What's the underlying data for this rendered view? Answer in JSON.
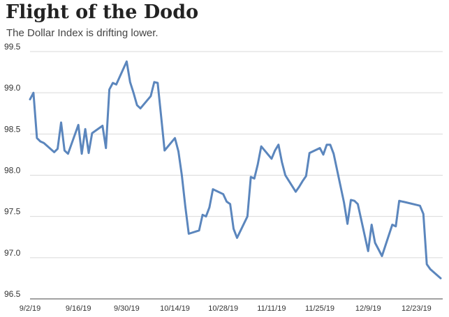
{
  "chart_data": {
    "type": "line",
    "title": "Flight of the Dodo",
    "subtitle": "The Dollar Index is drifting lower.",
    "xlabel": "",
    "ylabel": "",
    "ylim": [
      96.5,
      99.5
    ],
    "y_ticks": [
      "99.5",
      "99.0",
      "98.5",
      "98.0",
      "97.5",
      "97.0",
      "96.5"
    ],
    "y_tick_values": [
      99.5,
      99.0,
      98.5,
      98.0,
      97.5,
      97.0,
      96.5
    ],
    "x_ticks": [
      "9/2/19",
      "9/16/19",
      "9/30/19",
      "10/14/19",
      "10/28/19",
      "11/11/19",
      "11/25/19",
      "12/9/19",
      "12/23/19"
    ],
    "x_tick_dates": [
      "2019-09-02",
      "2019-09-16",
      "2019-09-30",
      "2019-10-14",
      "2019-10-28",
      "2019-11-11",
      "2019-11-25",
      "2019-12-09",
      "2019-12-23"
    ],
    "xlim": [
      "2019-09-02",
      "2019-12-30"
    ],
    "grid": "horizontal",
    "colors": {
      "line": "#5b86bd",
      "grid": "#d9d9d9",
      "baseline": "#444444"
    },
    "series": [
      {
        "x": [
          "2019-09-02",
          "2019-09-03",
          "2019-09-04",
          "2019-09-05",
          "2019-09-06",
          "2019-09-09",
          "2019-09-10",
          "2019-09-11",
          "2019-09-12",
          "2019-09-13",
          "2019-09-16",
          "2019-09-17",
          "2019-09-18",
          "2019-09-19",
          "2019-09-20",
          "2019-09-23",
          "2019-09-24",
          "2019-09-25",
          "2019-09-26",
          "2019-09-27",
          "2019-09-30",
          "2019-10-01",
          "2019-10-02",
          "2019-10-03",
          "2019-10-04",
          "2019-10-07",
          "2019-10-08",
          "2019-10-09",
          "2019-10-10",
          "2019-10-11",
          "2019-10-14",
          "2019-10-15",
          "2019-10-16",
          "2019-10-17",
          "2019-10-18",
          "2019-10-21",
          "2019-10-22",
          "2019-10-23",
          "2019-10-24",
          "2019-10-25",
          "2019-10-28",
          "2019-10-29",
          "2019-10-30",
          "2019-10-31",
          "2019-11-01",
          "2019-11-04",
          "2019-11-05",
          "2019-11-06",
          "2019-11-07",
          "2019-11-08",
          "2019-11-11",
          "2019-11-12",
          "2019-11-13",
          "2019-11-14",
          "2019-11-15",
          "2019-11-18",
          "2019-11-19",
          "2019-11-20",
          "2019-11-21",
          "2019-11-22",
          "2019-11-25",
          "2019-11-26",
          "2019-11-27",
          "2019-11-28",
          "2019-11-29",
          "2019-12-02",
          "2019-12-03",
          "2019-12-04",
          "2019-12-05",
          "2019-12-06",
          "2019-12-09",
          "2019-12-10",
          "2019-12-11",
          "2019-12-12",
          "2019-12-13",
          "2019-12-16",
          "2019-12-17",
          "2019-12-18",
          "2019-12-19",
          "2019-12-20",
          "2019-12-23",
          "2019-12-24",
          "2019-12-25",
          "2019-12-26",
          "2019-12-27",
          "2019-12-30"
        ],
        "values": [
          98.92,
          99.0,
          98.45,
          98.41,
          98.39,
          98.28,
          98.32,
          98.64,
          98.3,
          98.26,
          98.61,
          98.26,
          98.56,
          98.27,
          98.51,
          98.6,
          98.33,
          99.04,
          99.12,
          99.1,
          99.38,
          99.13,
          99.0,
          98.85,
          98.81,
          98.96,
          99.13,
          99.12,
          98.71,
          98.3,
          98.45,
          98.29,
          98.0,
          97.62,
          97.29,
          97.33,
          97.52,
          97.5,
          97.61,
          97.83,
          97.77,
          97.68,
          97.65,
          97.35,
          97.24,
          97.5,
          97.98,
          97.96,
          98.13,
          98.35,
          98.2,
          98.3,
          98.37,
          98.16,
          98.0,
          97.8,
          97.86,
          97.93,
          97.99,
          98.27,
          98.33,
          98.25,
          98.37,
          98.37,
          98.26,
          97.67,
          97.41,
          97.7,
          97.69,
          97.65,
          97.08,
          97.4,
          97.18,
          97.1,
          97.02,
          97.4,
          97.38,
          97.69,
          97.68,
          97.67,
          97.64,
          97.63,
          97.53,
          96.92,
          96.86,
          96.75
        ]
      }
    ]
  }
}
